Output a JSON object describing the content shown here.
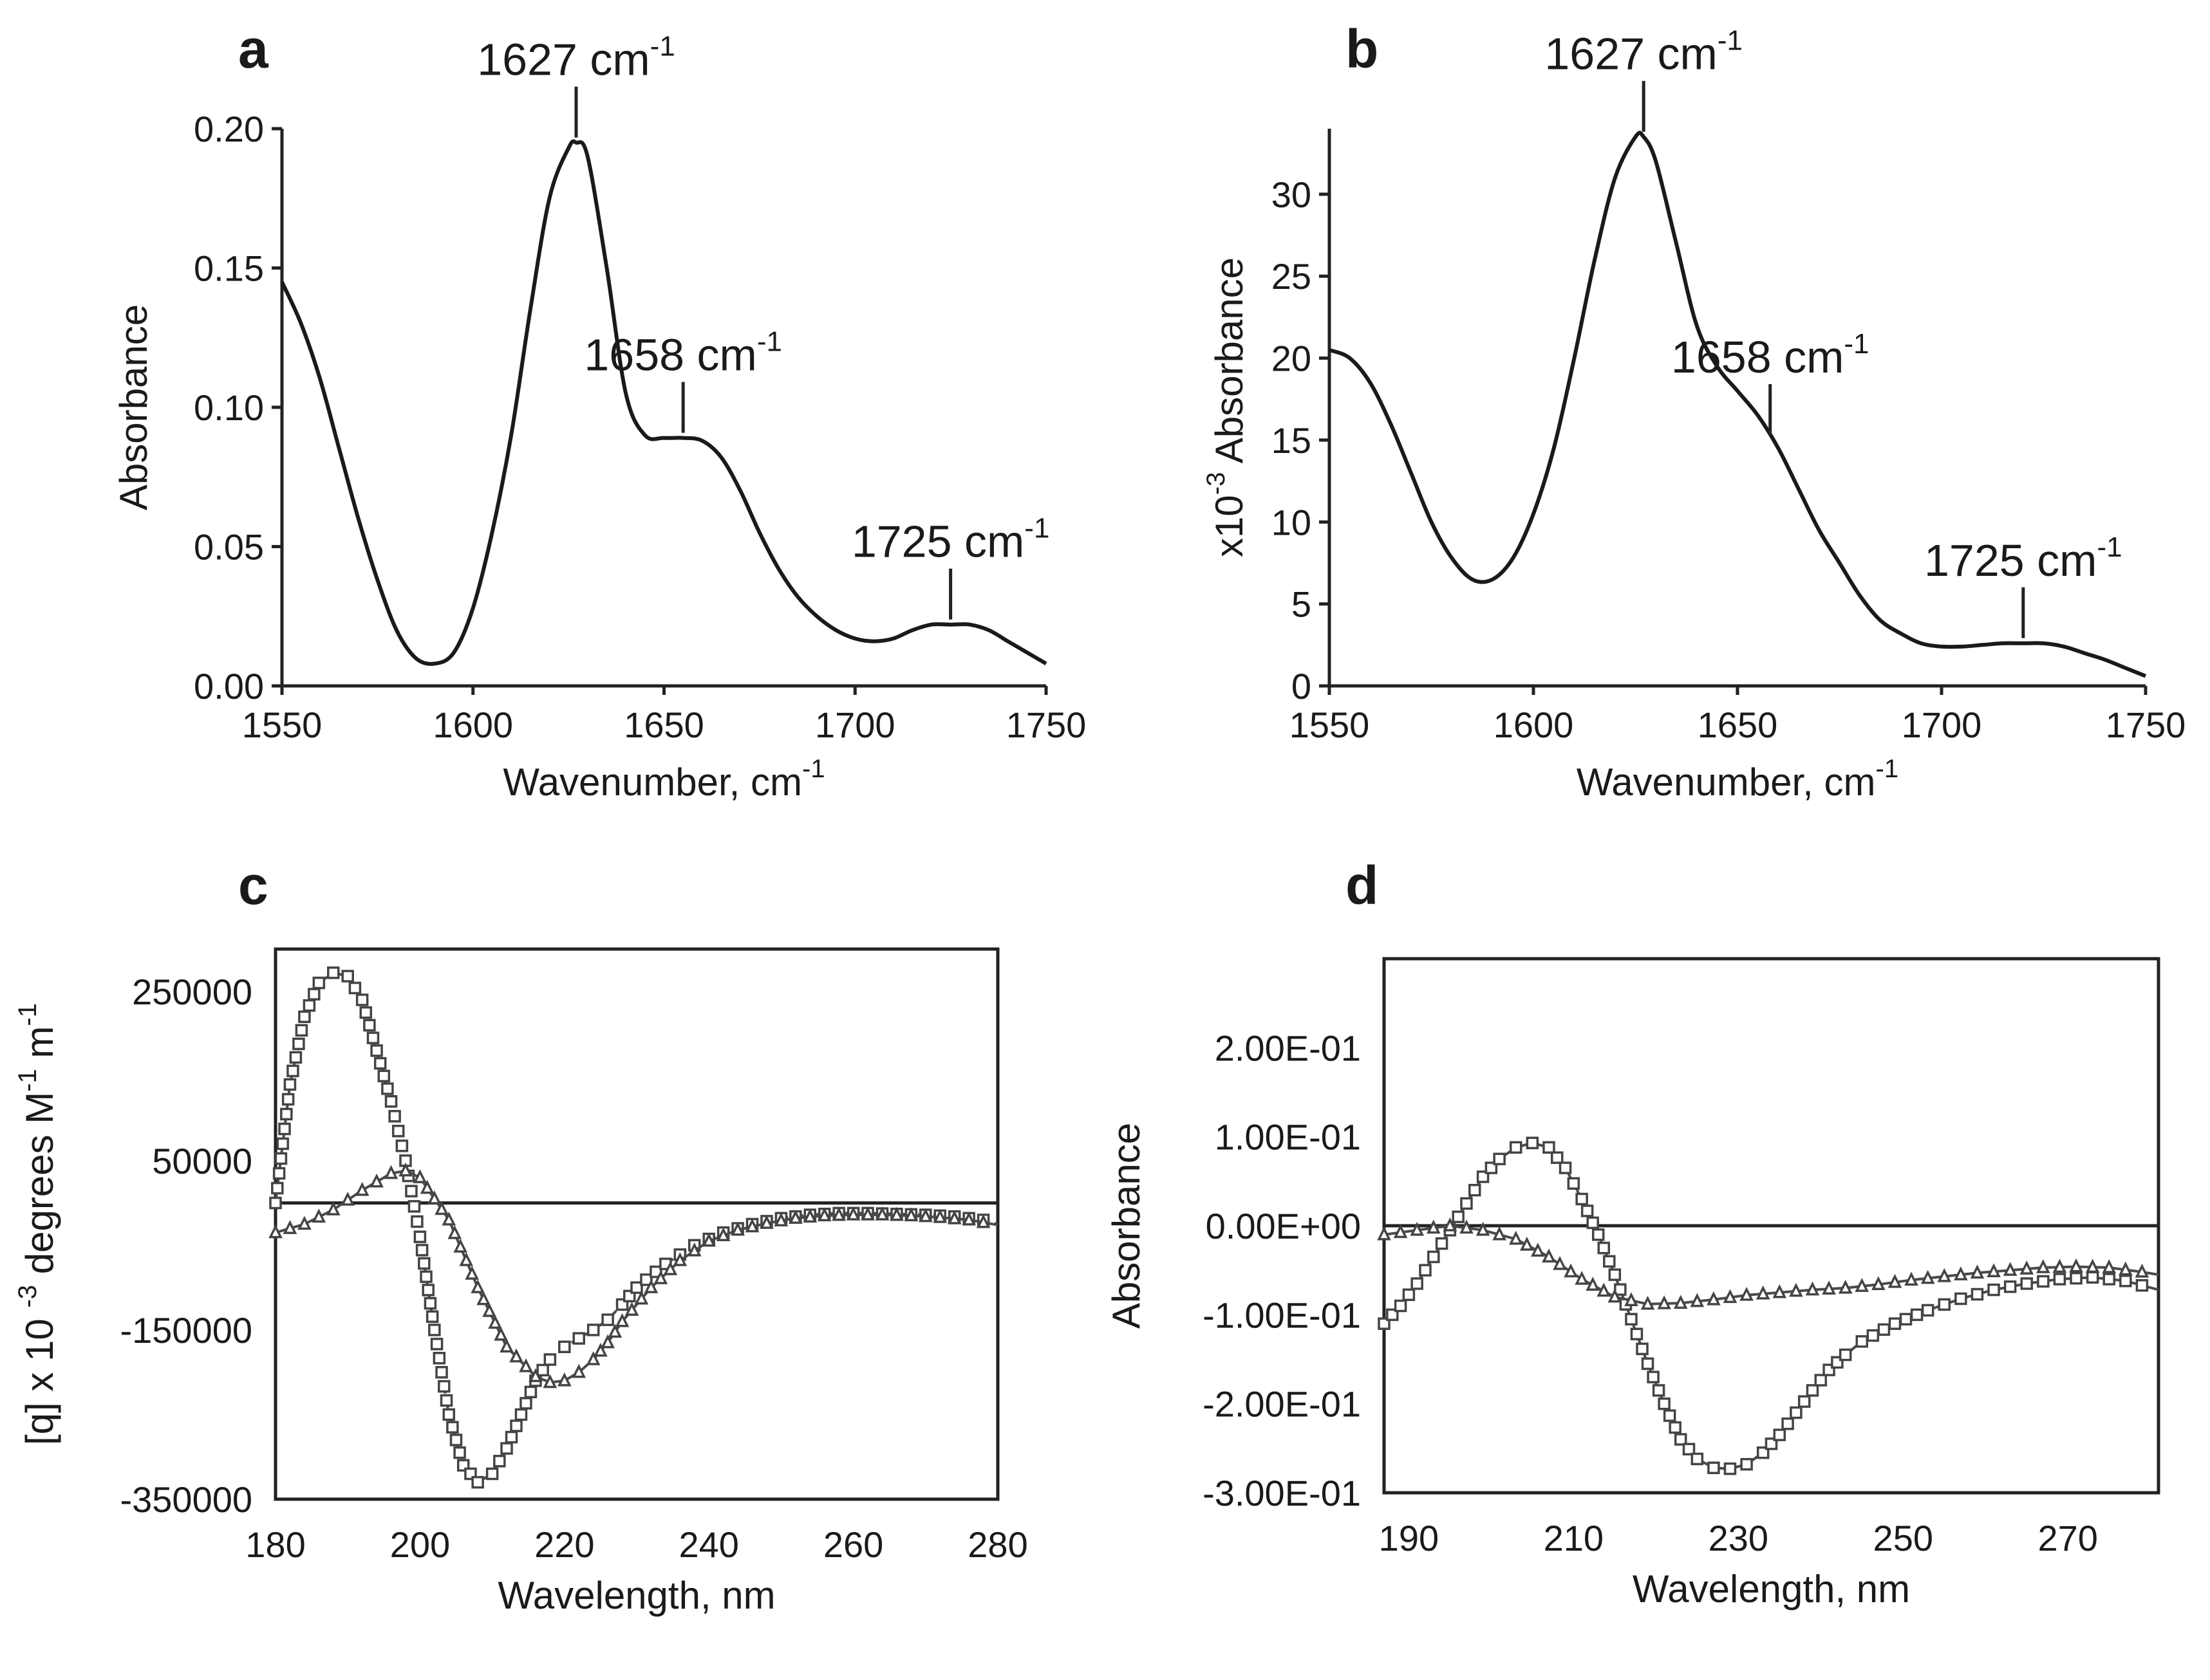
{
  "chart_data": [
    {
      "panel": "a",
      "type": "line",
      "xlabel": "Wavenumber, cm",
      "xlabel_sup": "-1",
      "ylabel": "Absorbance",
      "ylabel_prefix": "",
      "ylabel_prefix_sup": "",
      "xlim": [
        1550,
        1750
      ],
      "ylim": [
        0,
        0.2
      ],
      "x_ticks": [
        "1550",
        "1600",
        "1650",
        "1700",
        "1750"
      ],
      "y_ticks": [
        "0.00",
        "0.05",
        "0.10",
        "0.15",
        "0.20"
      ],
      "axis_style": "open",
      "annotations": [
        {
          "text": "1627 cm",
          "sup": "-1",
          "x": 1627,
          "y": 0.195
        },
        {
          "text": "1658 cm",
          "sup": "-1",
          "x": 1655,
          "y": 0.089
        },
        {
          "text": "1725 cm",
          "sup": "-1",
          "x": 1725,
          "y": 0.022
        }
      ],
      "series": [
        {
          "x": [
            1550,
            1555,
            1560,
            1565,
            1570,
            1575,
            1580,
            1585,
            1590,
            1595,
            1600,
            1605,
            1610,
            1615,
            1620,
            1625,
            1627,
            1630,
            1635,
            1640,
            1645,
            1650,
            1655,
            1660,
            1665,
            1670,
            1675,
            1680,
            1685,
            1690,
            1695,
            1700,
            1705,
            1710,
            1715,
            1720,
            1725,
            1730,
            1735,
            1740,
            1745,
            1750
          ],
          "y": [
            0.145,
            0.13,
            0.11,
            0.085,
            0.06,
            0.038,
            0.02,
            0.01,
            0.008,
            0.012,
            0.028,
            0.055,
            0.09,
            0.135,
            0.175,
            0.193,
            0.195,
            0.19,
            0.15,
            0.105,
            0.09,
            0.089,
            0.089,
            0.088,
            0.082,
            0.07,
            0.055,
            0.042,
            0.032,
            0.025,
            0.02,
            0.017,
            0.016,
            0.017,
            0.02,
            0.022,
            0.022,
            0.022,
            0.02,
            0.016,
            0.012,
            0.008
          ]
        }
      ]
    },
    {
      "panel": "b",
      "type": "line",
      "xlabel": "Wavenumber, cm",
      "xlabel_sup": "-1",
      "ylabel": "Absorbance",
      "ylabel_prefix": "x10",
      "ylabel_prefix_sup": "-3",
      "xlim": [
        1550,
        1750
      ],
      "ylim": [
        0,
        34
      ],
      "x_ticks": [
        "1550",
        "1600",
        "1650",
        "1700",
        "1750"
      ],
      "y_ticks": [
        "0",
        "5",
        "10",
        "15",
        "20",
        "25",
        "30"
      ],
      "axis_style": "open",
      "annotations": [
        {
          "text": "1627 cm",
          "sup": "-1",
          "x": 1627,
          "y": 33.5
        },
        {
          "text": "1658 cm",
          "sup": "-1",
          "x": 1658,
          "y": 15
        },
        {
          "text": "1725 cm",
          "sup": "-1",
          "x": 1720,
          "y": 2.6
        }
      ],
      "series": [
        {
          "x": [
            1550,
            1555,
            1560,
            1565,
            1570,
            1575,
            1580,
            1585,
            1590,
            1595,
            1600,
            1605,
            1610,
            1615,
            1620,
            1625,
            1627,
            1630,
            1635,
            1640,
            1645,
            1650,
            1655,
            1660,
            1665,
            1670,
            1675,
            1680,
            1685,
            1690,
            1695,
            1700,
            1705,
            1710,
            1715,
            1720,
            1725,
            1730,
            1735,
            1740,
            1745,
            1750
          ],
          "y": [
            20.5,
            20,
            18.5,
            16,
            13,
            10,
            7.8,
            6.5,
            6.5,
            7.8,
            10.5,
            14.5,
            20,
            26,
            31,
            33.5,
            33.5,
            32,
            27,
            22,
            19.5,
            18,
            16.5,
            14.5,
            12,
            9.5,
            7.5,
            5.5,
            4,
            3.2,
            2.6,
            2.4,
            2.4,
            2.5,
            2.6,
            2.6,
            2.6,
            2.4,
            2.0,
            1.6,
            1.1,
            0.6
          ]
        }
      ]
    },
    {
      "panel": "c",
      "type": "line",
      "xlabel": "Wavelength, nm",
      "ylabel": "[q] x 10 degrees M m",
      "ylabel_parts": [
        {
          "t": "[q] x 10 "
        },
        {
          "t": "-3",
          "sup": true
        },
        {
          "t": " degrees M"
        },
        {
          "t": "-1",
          "sup": true
        },
        {
          "t": " m"
        },
        {
          "t": "-1",
          "sup": true
        }
      ],
      "xlim": [
        180,
        280
      ],
      "ylim": [
        -350000,
        300000
      ],
      "x_ticks": [
        "180",
        "200",
        "220",
        "240",
        "260",
        "280"
      ],
      "y_ticks": [
        {
          "value": 250000,
          "label": "250000"
        },
        {
          "value": 50000,
          "label": "50000"
        },
        {
          "value": -150000,
          "label": "-150000"
        },
        {
          "value": -350000,
          "label": "-350000"
        }
      ],
      "axis_style": "boxed",
      "zero_line": 0,
      "series": [
        {
          "marker": "square",
          "style": "dashed",
          "x": [
            180,
            182,
            184,
            186,
            188,
            190,
            192,
            194,
            196,
            198,
            200,
            202,
            204,
            206,
            208,
            210,
            212,
            214,
            216,
            218,
            220,
            222,
            224,
            226,
            228,
            230,
            234,
            238,
            242,
            246,
            250,
            254,
            258,
            262,
            266,
            270,
            274,
            278,
            280
          ],
          "y": [
            0,
            140000,
            220000,
            260000,
            272000,
            268000,
            240000,
            180000,
            120000,
            50000,
            -40000,
            -150000,
            -250000,
            -310000,
            -330000,
            -320000,
            -290000,
            -250000,
            -210000,
            -185000,
            -170000,
            -160000,
            -150000,
            -138000,
            -120000,
            -100000,
            -72000,
            -50000,
            -35000,
            -25000,
            -18000,
            -14000,
            -12000,
            -12000,
            -13000,
            -14000,
            -16000,
            -20000,
            -25000
          ]
        },
        {
          "marker": "triangle",
          "style": "solid",
          "x": [
            180,
            184,
            188,
            192,
            196,
            198,
            200,
            204,
            208,
            212,
            216,
            218,
            220,
            222,
            224,
            226,
            228,
            232,
            236,
            240,
            244,
            248,
            252,
            256,
            260,
            264,
            268,
            272,
            276,
            280
          ],
          "y": [
            -35000,
            -25000,
            -8000,
            15000,
            35000,
            38000,
            30000,
            -20000,
            -100000,
            -170000,
            -205000,
            -212000,
            -210000,
            -200000,
            -185000,
            -165000,
            -140000,
            -100000,
            -68000,
            -45000,
            -32000,
            -24000,
            -18000,
            -15000,
            -14000,
            -14000,
            -15000,
            -17000,
            -20000,
            -26000
          ]
        }
      ]
    },
    {
      "panel": "d",
      "type": "line",
      "xlabel": "Wavelength, nm",
      "ylabel": "Absorbance",
      "xlim": [
        187,
        281
      ],
      "ylim": [
        -0.3,
        0.3
      ],
      "x_ticks": [
        {
          "value": 190,
          "label": "190"
        },
        {
          "value": 210,
          "label": "210"
        },
        {
          "value": 230,
          "label": "230"
        },
        {
          "value": 250,
          "label": "250"
        },
        {
          "value": 270,
          "label": "270"
        }
      ],
      "y_ticks": [
        {
          "value": 0.2,
          "label": "2.00E-01"
        },
        {
          "value": 0.1,
          "label": "1.00E-01"
        },
        {
          "value": 0.0,
          "label": "0.00E+00"
        },
        {
          "value": -0.1,
          "label": "-1.00E-01"
        },
        {
          "value": -0.2,
          "label": "-2.00E-01"
        },
        {
          "value": -0.3,
          "label": "-3.00E-01"
        }
      ],
      "axis_style": "boxed",
      "zero_line": 0,
      "series": [
        {
          "marker": "square",
          "style": "solid",
          "x": [
            187,
            189,
            191,
            193,
            195,
            197,
            199,
            201,
            203,
            205,
            207,
            209,
            211,
            213,
            215,
            217,
            219,
            221,
            223,
            225,
            227,
            229,
            231,
            233,
            235,
            237,
            239,
            241,
            243,
            245,
            249,
            253,
            257,
            261,
            265,
            269,
            273,
            277,
            281
          ],
          "y": [
            -0.11,
            -0.09,
            -0.065,
            -0.035,
            -0.005,
            0.025,
            0.055,
            0.075,
            0.088,
            0.093,
            0.088,
            0.065,
            0.03,
            -0.01,
            -0.055,
            -0.105,
            -0.155,
            -0.2,
            -0.24,
            -0.262,
            -0.272,
            -0.273,
            -0.268,
            -0.255,
            -0.235,
            -0.21,
            -0.185,
            -0.162,
            -0.145,
            -0.13,
            -0.11,
            -0.095,
            -0.082,
            -0.072,
            -0.065,
            -0.06,
            -0.058,
            -0.062,
            -0.072
          ]
        },
        {
          "marker": "triangle",
          "style": "solid",
          "x": [
            187,
            191,
            195,
            199,
            203,
            207,
            211,
            215,
            219,
            223,
            227,
            231,
            235,
            239,
            243,
            247,
            251,
            255,
            259,
            263,
            267,
            271,
            275,
            279,
            281
          ],
          "y": [
            -0.01,
            -0.005,
            0.0,
            -0.005,
            -0.015,
            -0.035,
            -0.06,
            -0.08,
            -0.088,
            -0.087,
            -0.083,
            -0.078,
            -0.075,
            -0.072,
            -0.07,
            -0.066,
            -0.061,
            -0.057,
            -0.053,
            -0.05,
            -0.047,
            -0.046,
            -0.047,
            -0.052,
            -0.055
          ]
        }
      ]
    }
  ]
}
